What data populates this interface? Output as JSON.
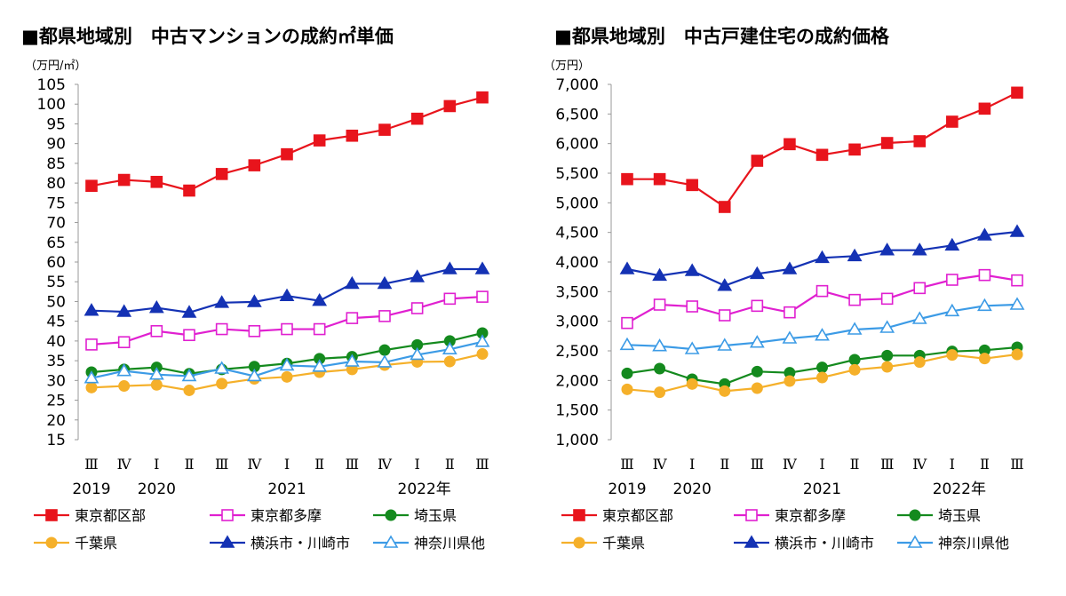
{
  "chart_data": [
    {
      "type": "line",
      "title": "■都県地域別　中古マンションの成約㎡単価",
      "ylabel": "（万円/㎡）",
      "ylim": [
        15,
        105
      ],
      "yticks": [
        "105",
        "100",
        "95",
        "90",
        "85",
        "80",
        "75",
        "70",
        "65",
        "60",
        "55",
        "50",
        "45",
        "40",
        "35",
        "30",
        "25",
        "20",
        "15"
      ],
      "categories": [
        "Ⅲ",
        "Ⅳ",
        "Ⅰ",
        "Ⅱ",
        "Ⅲ",
        "Ⅳ",
        "Ⅰ",
        "Ⅱ",
        "Ⅲ",
        "Ⅳ",
        "Ⅰ",
        "Ⅱ",
        "Ⅲ"
      ],
      "year_labels": [
        {
          "index": 0,
          "label": "2019"
        },
        {
          "index": 2,
          "label": "2020"
        },
        {
          "index": 6,
          "label": "2021"
        },
        {
          "index": 10,
          "label": "2022年"
        }
      ],
      "grid": false,
      "legend": "bottom",
      "series": [
        {
          "name": "東京都区部",
          "color": "#e8141c",
          "marker": "square-filled",
          "values": [
            79.3,
            80.8,
            80.3,
            78.1,
            82.3,
            84.5,
            87.3,
            90.8,
            92.0,
            93.5,
            96.3,
            99.5,
            101.7
          ]
        },
        {
          "name": "東京都多摩",
          "color": "#e020d0",
          "marker": "square-open",
          "values": [
            39.1,
            39.7,
            42.5,
            41.5,
            43.0,
            42.5,
            43.0,
            43.0,
            45.8,
            46.3,
            48.3,
            50.7,
            51.2
          ]
        },
        {
          "name": "埼玉県",
          "color": "#148a1e",
          "marker": "circle-filled",
          "values": [
            32.1,
            32.8,
            33.3,
            31.7,
            32.8,
            33.5,
            34.3,
            35.5,
            36.0,
            37.7,
            39.0,
            40.0,
            42.0
          ]
        },
        {
          "name": "千葉県",
          "color": "#f5b02a",
          "marker": "circle-filled",
          "values": [
            28.2,
            28.6,
            28.9,
            27.5,
            29.2,
            30.4,
            30.9,
            32.1,
            32.8,
            33.9,
            34.7,
            34.8,
            36.7
          ]
        },
        {
          "name": "横浜市・川崎市",
          "color": "#1432b4",
          "marker": "triangle-filled",
          "values": [
            47.7,
            47.4,
            48.4,
            47.2,
            49.7,
            49.9,
            51.4,
            50.2,
            54.5,
            54.5,
            56.2,
            58.2,
            58.2
          ]
        },
        {
          "name": "神奈川県他",
          "color": "#3c9be6",
          "marker": "triangle-open",
          "values": [
            30.6,
            32.4,
            31.5,
            31.1,
            33.0,
            31.1,
            33.8,
            33.5,
            34.8,
            34.6,
            36.5,
            37.9,
            39.8
          ]
        }
      ]
    },
    {
      "type": "line",
      "title": "■都県地域別　中古戸建住宅の成約価格",
      "ylabel": "（万円）",
      "ylim": [
        1000,
        7000
      ],
      "yticks": [
        "7,000",
        "6,500",
        "6,000",
        "5,500",
        "5,000",
        "4,500",
        "4,000",
        "3,500",
        "3,000",
        "2,500",
        "2,000",
        "1,500",
        "1,000"
      ],
      "categories": [
        "Ⅲ",
        "Ⅳ",
        "Ⅰ",
        "Ⅱ",
        "Ⅲ",
        "Ⅳ",
        "Ⅰ",
        "Ⅱ",
        "Ⅲ",
        "Ⅳ",
        "Ⅰ",
        "Ⅱ",
        "Ⅲ"
      ],
      "year_labels": [
        {
          "index": 0,
          "label": "2019"
        },
        {
          "index": 2,
          "label": "2020"
        },
        {
          "index": 6,
          "label": "2021"
        },
        {
          "index": 10,
          "label": "2022年"
        }
      ],
      "grid": false,
      "legend": "bottom",
      "series": [
        {
          "name": "東京都区部",
          "color": "#e8141c",
          "marker": "square-filled",
          "values": [
            5400,
            5400,
            5300,
            4930,
            5710,
            5990,
            5810,
            5900,
            6010,
            6040,
            6370,
            6590,
            6860
          ]
        },
        {
          "name": "東京都多摩",
          "color": "#e020d0",
          "marker": "square-open",
          "values": [
            2970,
            3280,
            3250,
            3100,
            3260,
            3150,
            3510,
            3360,
            3380,
            3560,
            3700,
            3780,
            3690
          ]
        },
        {
          "name": "埼玉県",
          "color": "#148a1e",
          "marker": "circle-filled",
          "values": [
            2120,
            2200,
            2020,
            1940,
            2150,
            2130,
            2220,
            2350,
            2420,
            2420,
            2490,
            2510,
            2560
          ]
        },
        {
          "name": "千葉県",
          "color": "#f5b02a",
          "marker": "circle-filled",
          "values": [
            1850,
            1800,
            1940,
            1820,
            1870,
            1990,
            2050,
            2180,
            2230,
            2310,
            2430,
            2370,
            2440
          ]
        },
        {
          "name": "横浜市・川崎市",
          "color": "#1432b4",
          "marker": "triangle-filled",
          "values": [
            3880,
            3770,
            3850,
            3600,
            3800,
            3880,
            4070,
            4100,
            4200,
            4200,
            4280,
            4450,
            4510
          ]
        },
        {
          "name": "神奈川県他",
          "color": "#3c9be6",
          "marker": "triangle-open",
          "values": [
            2600,
            2580,
            2530,
            2590,
            2640,
            2710,
            2760,
            2860,
            2890,
            3040,
            3170,
            3260,
            3280
          ]
        }
      ]
    }
  ]
}
